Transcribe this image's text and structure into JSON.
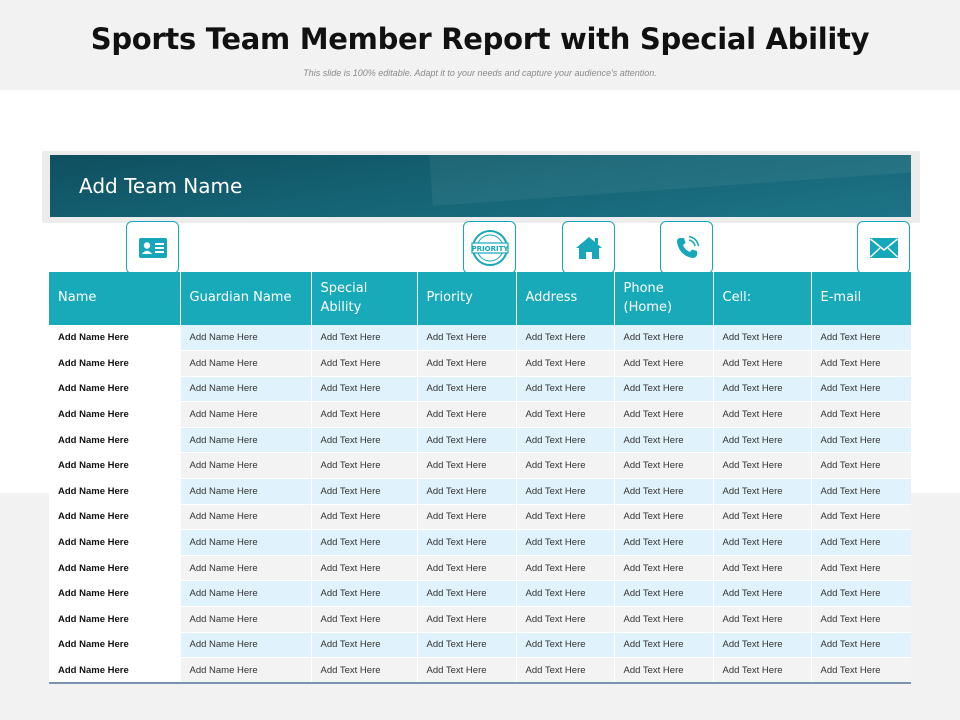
{
  "header": {
    "title": "Sports Team Member Report with Special Ability",
    "subtitle": "This slide is 100% editable. Adapt it to your needs and capture your audience's attention."
  },
  "banner": {
    "team_name": "Add Team Name"
  },
  "icons": {
    "id_card": "id-card-icon",
    "priority": "priority-stamp-icon",
    "priority_text": "PRIORITY",
    "home": "home-icon",
    "phone": "phone-icon",
    "email": "email-icon",
    "accent_color": "#16a7bb"
  },
  "colors": {
    "header_bg": "#18aab8",
    "banner_bg": "#146273",
    "row_odd": "#e0f2fb",
    "row_even": "#f3f3f3"
  },
  "table": {
    "columns": [
      "Name",
      "Guardian Name",
      "Special Ability",
      "Priority",
      "Address",
      "Phone (Home)",
      "Cell:",
      "E-mail"
    ],
    "rows": [
      [
        "Add Name Here",
        "Add Name Here",
        "Add Text Here",
        "Add Text Here",
        "Add Text Here",
        "Add Text Here",
        "Add Text Here",
        "Add Text Here"
      ],
      [
        "Add Name Here",
        "Add Name Here",
        "Add Text Here",
        "Add Text Here",
        "Add Text Here",
        "Add Text Here",
        "Add Text Here",
        "Add Text Here"
      ],
      [
        "Add Name Here",
        "Add Name Here",
        "Add Text Here",
        "Add Text Here",
        "Add Text Here",
        "Add Text Here",
        "Add Text Here",
        "Add Text Here"
      ],
      [
        "Add Name Here",
        "Add Name Here",
        "Add Text Here",
        "Add Text Here",
        "Add Text Here",
        "Add Text Here",
        "Add Text Here",
        "Add Text Here"
      ],
      [
        "Add Name Here",
        "Add Name Here",
        "Add Text Here",
        "Add Text Here",
        "Add Text Here",
        "Add Text Here",
        "Add Text Here",
        "Add Text Here"
      ],
      [
        "Add Name Here",
        "Add Name Here",
        "Add Text Here",
        "Add Text Here",
        "Add Text Here",
        "Add Text Here",
        "Add Text Here",
        "Add Text Here"
      ],
      [
        "Add Name Here",
        "Add Name Here",
        "Add Text Here",
        "Add Text Here",
        "Add Text Here",
        "Add Text Here",
        "Add Text Here",
        "Add Text Here"
      ],
      [
        "Add Name Here",
        "Add Name Here",
        "Add Text Here",
        "Add Text Here",
        "Add Text Here",
        "Add Text Here",
        "Add Text Here",
        "Add Text Here"
      ],
      [
        "Add Name Here",
        "Add Name Here",
        "Add Text Here",
        "Add Text Here",
        "Add Text Here",
        "Add Text Here",
        "Add Text Here",
        "Add Text Here"
      ],
      [
        "Add Name Here",
        "Add Name Here",
        "Add Text Here",
        "Add Text Here",
        "Add Text Here",
        "Add Text Here",
        "Add Text Here",
        "Add Text Here"
      ],
      [
        "Add Name Here",
        "Add Name Here",
        "Add Text Here",
        "Add Text Here",
        "Add Text Here",
        "Add Text Here",
        "Add Text Here",
        "Add Text Here"
      ],
      [
        "Add Name Here",
        "Add Name Here",
        "Add Text Here",
        "Add Text Here",
        "Add Text Here",
        "Add Text Here",
        "Add Text Here",
        "Add Text Here"
      ],
      [
        "Add Name Here",
        "Add Name Here",
        "Add Text Here",
        "Add Text Here",
        "Add Text Here",
        "Add Text Here",
        "Add Text Here",
        "Add Text Here"
      ],
      [
        "Add Name Here",
        "Add Name Here",
        "Add Text Here",
        "Add Text Here",
        "Add Text Here",
        "Add Text Here",
        "Add Text Here",
        "Add Text Here"
      ]
    ]
  }
}
